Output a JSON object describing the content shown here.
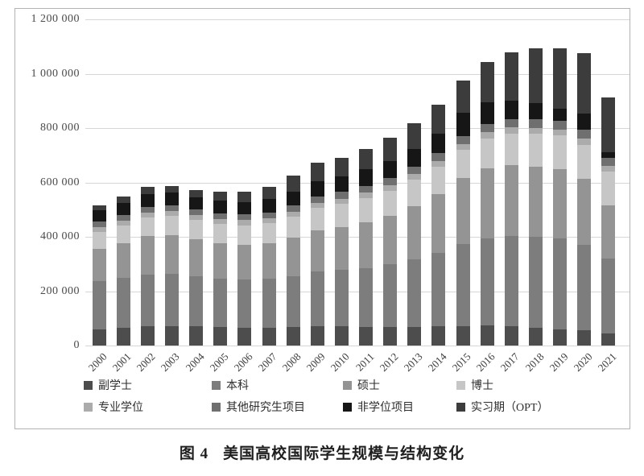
{
  "caption": {
    "figure_label": "图 4",
    "title": "美国高校国际学生规模与结构变化"
  },
  "chart_data": {
    "type": "bar",
    "subtype": "stacked",
    "title": "",
    "xlabel": "",
    "ylabel": "",
    "grid": true,
    "legend_position": "bottom",
    "ylim": [
      0,
      1200000
    ],
    "ytick_interval": 200000,
    "ytick_labels": [
      "0",
      "200 000",
      "400 000",
      "600 000",
      "800 000",
      "1 000 000",
      "1 200 000"
    ],
    "categories": [
      "2000",
      "2001",
      "2002",
      "2003",
      "2004",
      "2005",
      "2006",
      "2007",
      "2008",
      "2009",
      "2010",
      "2011",
      "2012",
      "2013",
      "2014",
      "2015",
      "2016",
      "2017",
      "2018",
      "2019",
      "2020",
      "2021"
    ],
    "series": [
      {
        "name": "副学士",
        "color": "#4d4d4d",
        "values": [
          60000,
          64000,
          70000,
          72000,
          70000,
          67000,
          65000,
          65000,
          68000,
          72000,
          70000,
          68000,
          67000,
          68000,
          70000,
          72000,
          73000,
          70000,
          65000,
          60000,
          55000,
          45000
        ]
      },
      {
        "name": "本科",
        "color": "#7d7d7d",
        "values": [
          178000,
          185000,
          192000,
          192000,
          185000,
          180000,
          178000,
          180000,
          188000,
          200000,
          208000,
          218000,
          232000,
          250000,
          272000,
          300000,
          322000,
          333000,
          334000,
          333000,
          315000,
          275000
        ]
      },
      {
        "name": "硕士",
        "color": "#949494",
        "values": [
          119000,
          128000,
          140000,
          142000,
          136000,
          130000,
          128000,
          130000,
          140000,
          152000,
          158000,
          168000,
          178000,
          196000,
          216000,
          243000,
          258000,
          262000,
          260000,
          256000,
          244000,
          197000
        ]
      },
      {
        "name": "博士",
        "color": "#c6c6c6",
        "values": [
          62000,
          65000,
          68000,
          70000,
          70000,
          70000,
          72000,
          75000,
          78000,
          82000,
          85000,
          88000,
          92000,
          96000,
          100000,
          105000,
          110000,
          115000,
          120000,
          123000,
          125000,
          124000
        ]
      },
      {
        "name": "专业学位",
        "color": "#ababab",
        "values": [
          17000,
          18000,
          18000,
          18000,
          18000,
          18000,
          18000,
          18000,
          19000,
          19000,
          19000,
          20000,
          20000,
          20000,
          21000,
          21000,
          22000,
          22000,
          22000,
          22000,
          22000,
          20000
        ]
      },
      {
        "name": "其他研究生项目",
        "color": "#6f6f6f",
        "values": [
          20000,
          21000,
          22000,
          22000,
          21000,
          21000,
          21000,
          22000,
          23000,
          24000,
          25000,
          26000,
          27000,
          28000,
          29000,
          30000,
          31000,
          32000,
          32000,
          33000,
          33000,
          28000
        ]
      },
      {
        "name": "非学位项目",
        "color": "#161616",
        "values": [
          41000,
          44000,
          48000,
          46000,
          44000,
          46000,
          46000,
          50000,
          51000,
          56000,
          58000,
          61000,
          63000,
          66000,
          72000,
          84000,
          80000,
          68000,
          58000,
          45000,
          58000,
          22000
        ]
      },
      {
        "name": "实习期（OPT）",
        "color": "#3c3c3c",
        "values": [
          18000,
          23000,
          25000,
          24000,
          28000,
          33000,
          37000,
          43000,
          57000,
          67000,
          68000,
          74000,
          85000,
          95000,
          106000,
          120000,
          147000,
          176000,
          203000,
          223000,
          223000,
          203000
        ]
      }
    ]
  }
}
